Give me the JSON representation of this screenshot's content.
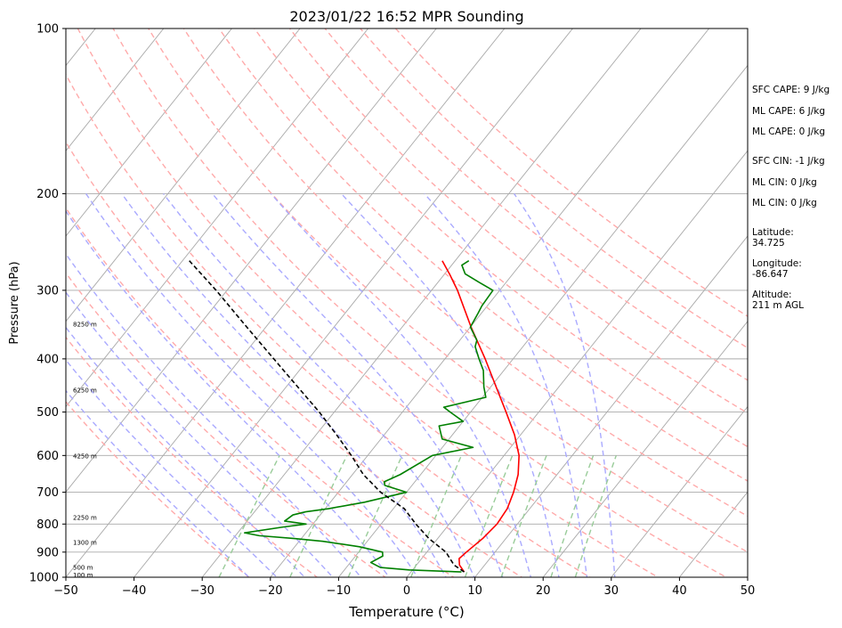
{
  "chart_data": {
    "type": "line",
    "title": "2023/01/22 16:52 MPR Sounding",
    "xlabel": "Temperature (°C)",
    "ylabel": "Pressure (hPa)",
    "xlim": [
      -50,
      50
    ],
    "ylim": [
      1000,
      100
    ],
    "y_scale": "log",
    "skew": true,
    "grid": true,
    "x_ticks": [
      -50,
      -40,
      -30,
      -20,
      -10,
      0,
      10,
      20,
      30,
      40,
      50
    ],
    "y_ticks": [
      1000,
      900,
      800,
      700,
      600,
      500,
      400,
      300,
      200,
      100
    ],
    "isotherms": [
      -160,
      -150,
      -140,
      -130,
      -120,
      -110,
      -100,
      -90,
      -80,
      -70,
      -60,
      -50,
      -40,
      -30,
      -20,
      -10,
      0,
      10,
      20,
      30,
      40,
      50
    ],
    "dry_adiabats_theta_k": [
      250,
      260,
      270,
      280,
      290,
      300,
      310,
      320,
      330,
      340,
      350,
      360,
      370,
      380,
      390,
      400
    ],
    "moist_adiabats_start_c": [
      -20,
      -16,
      -12,
      -8,
      -4,
      0,
      4,
      8,
      12,
      16,
      20,
      24,
      28,
      32
    ],
    "mixing_ratios_gkg": [
      0.4,
      1,
      2,
      4,
      7,
      10,
      16,
      20
    ],
    "series": [
      {
        "name": "",
        "role": "temperature",
        "color": "#ff0000",
        "pressure": [
          978,
          950,
          925,
          900,
          850,
          800,
          750,
          700,
          650,
          600,
          550,
          500,
          450,
          400,
          350,
          300,
          280,
          265
        ],
        "temperature": [
          7.8,
          6.3,
          5.5,
          5.8,
          6.6,
          7.0,
          6.7,
          5.7,
          4.3,
          2.2,
          -0.9,
          -4.8,
          -9.2,
          -14.1,
          -19.9,
          -26.2,
          -29.3,
          -31.9
        ]
      },
      {
        "name": "",
        "role": "dewpoint",
        "color": "#008000",
        "pressure": [
          978,
          970,
          960,
          940,
          915,
          900,
          880,
          860,
          850,
          840,
          830,
          810,
          800,
          790,
          770,
          760,
          750,
          730,
          700,
          680,
          670,
          650,
          600,
          580,
          560,
          530,
          520,
          500,
          490,
          470,
          450,
          420,
          400,
          380,
          370,
          350,
          330,
          320,
          300,
          290,
          280,
          270,
          265
        ],
        "dewpoint": [
          7.4,
          -0.5,
          -5.0,
          -7.0,
          -6.0,
          -6.5,
          -10.5,
          -16.5,
          -21.0,
          -26.5,
          -29.0,
          -24.0,
          -21.0,
          -24.5,
          -24.0,
          -22.5,
          -19.5,
          -15.0,
          -10.0,
          -14.0,
          -14.5,
          -13.0,
          -10.5,
          -5.5,
          -11.0,
          -13.0,
          -10.0,
          -13.0,
          -14.5,
          -9.5,
          -11.0,
          -13.0,
          -15.0,
          -17.0,
          -17.5,
          -20.0,
          -20.5,
          -20.8,
          -21.0,
          -24.0,
          -27.0,
          -28.5,
          -28.0
        ]
      },
      {
        "name": "",
        "role": "parcel",
        "color": "#000000",
        "style": "dashed",
        "pressure": [
          978,
          950,
          900,
          850,
          800,
          750,
          700,
          650,
          600,
          550,
          500,
          450,
          400,
          350,
          300,
          265
        ],
        "temperature": [
          7.8,
          5.5,
          2.8,
          -1.3,
          -4.9,
          -8.4,
          -13.8,
          -18.4,
          -22.4,
          -27.0,
          -32.2,
          -38.3,
          -45.1,
          -52.8,
          -61.6,
          -69.0
        ]
      }
    ],
    "height_labels": [
      {
        "pressure": 990,
        "text": "100 m"
      },
      {
        "pressure": 960,
        "text": "500 m"
      },
      {
        "pressure": 865,
        "text": "1300 m"
      },
      {
        "pressure": 779,
        "text": "2250 m"
      },
      {
        "pressure": 601,
        "text": "4250 m"
      },
      {
        "pressure": 456,
        "text": "6250 m"
      },
      {
        "pressure": 346,
        "text": "8250 m"
      }
    ]
  },
  "info_panel": [
    {
      "text": "SFC CAPE: 9 J/kg"
    },
    {
      "text": "ML CAPE: 6 J/kg"
    },
    {
      "text": "ML CAPE: 0 J/kg"
    },
    {
      "text": "SFC CIN: -1 J/kg"
    },
    {
      "text": "ML CIN: 0 J/kg"
    },
    {
      "text": "ML CIN: 0 J/kg"
    },
    {
      "text": "Latitude:",
      "text2": "34.725"
    },
    {
      "text": "Longitude:",
      "text2": "-86.647"
    },
    {
      "text": "Altitude:",
      "text2": "211 m AGL"
    }
  ],
  "colors": {
    "isotherm": "#aaaaaa",
    "isobar": "#aaaaaa",
    "dry_adiabat": "#ffaaaa",
    "moist_adiabat": "#aaaaff",
    "mixing_ratio": "#99cc99"
  }
}
